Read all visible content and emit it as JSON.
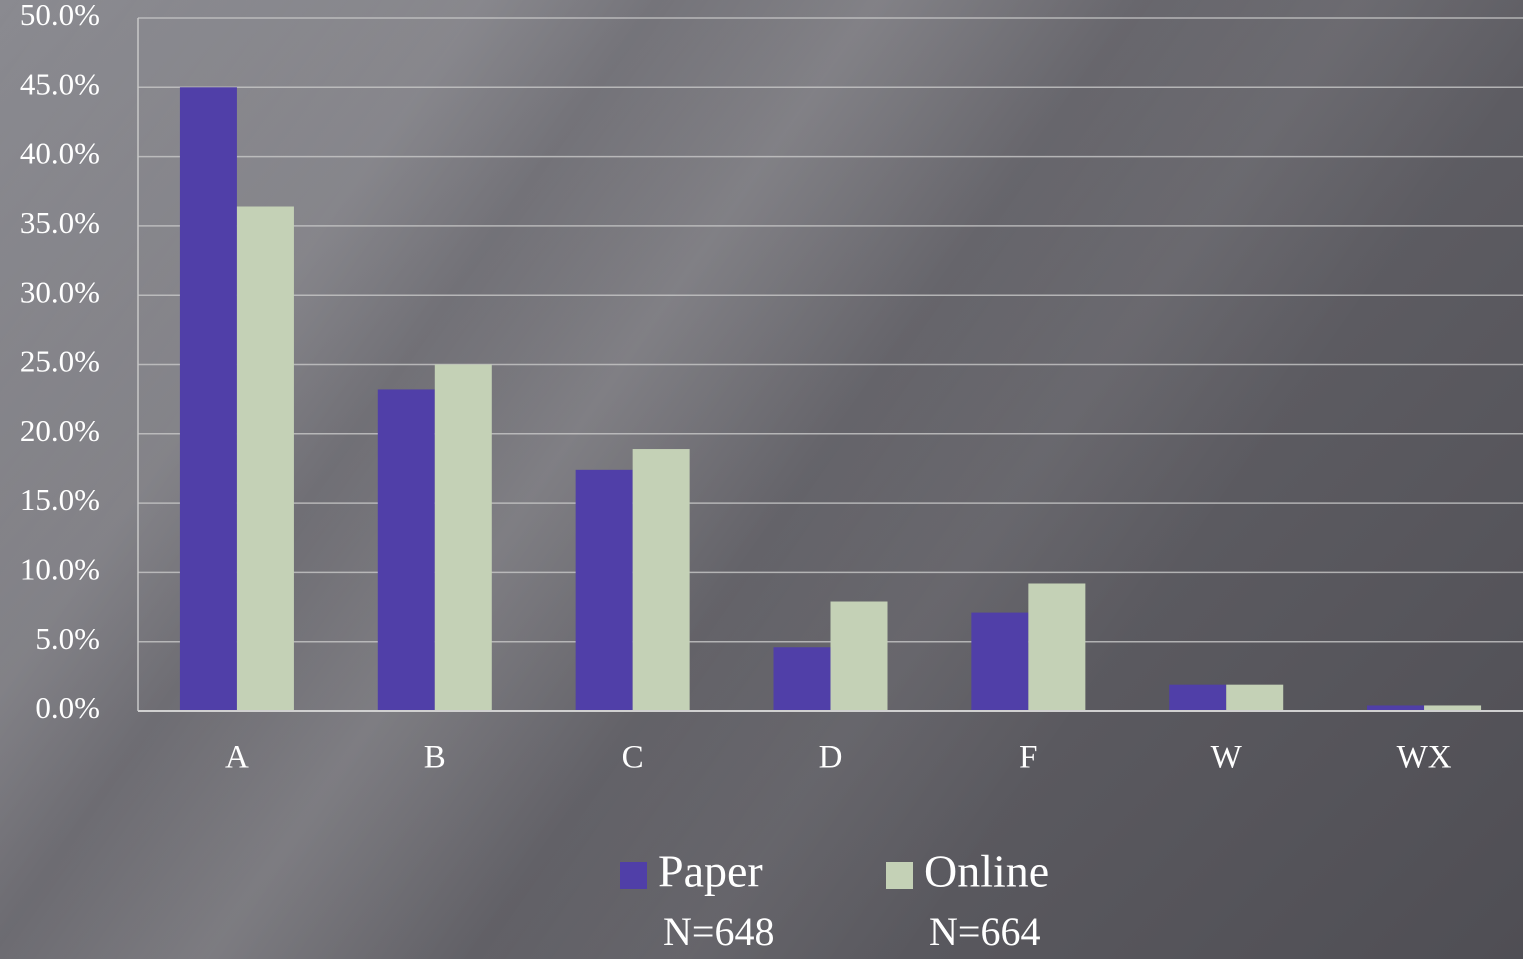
{
  "chart_data": {
    "type": "bar",
    "categories": [
      "A",
      "B",
      "C",
      "D",
      "F",
      "W",
      "WX"
    ],
    "series": [
      {
        "name": "Paper",
        "color": "#503fa8",
        "values": [
          45.0,
          23.2,
          17.4,
          4.6,
          7.1,
          1.9,
          0.4
        ]
      },
      {
        "name": "Online",
        "color": "#c4d1b6",
        "values": [
          36.4,
          25.0,
          18.9,
          7.9,
          9.2,
          1.9,
          0.4
        ]
      }
    ],
    "legend_notes": [
      "N=648",
      "N=664"
    ],
    "ylim": [
      0,
      50
    ],
    "yticks": [
      {
        "value": 0,
        "label": "0.0%"
      },
      {
        "value": 5,
        "label": "5.0%"
      },
      {
        "value": 10,
        "label": "10.0%"
      },
      {
        "value": 15,
        "label": "15.0%"
      },
      {
        "value": 20,
        "label": "20.0%"
      },
      {
        "value": 25,
        "label": "25.0%"
      },
      {
        "value": 30,
        "label": "30.0%"
      },
      {
        "value": 35,
        "label": "35.0%"
      },
      {
        "value": 40,
        "label": "40.0%"
      },
      {
        "value": 45,
        "label": "45.0%"
      },
      {
        "value": 50,
        "label": "50.0%"
      }
    ],
    "grid": true,
    "legend": "bottom"
  }
}
